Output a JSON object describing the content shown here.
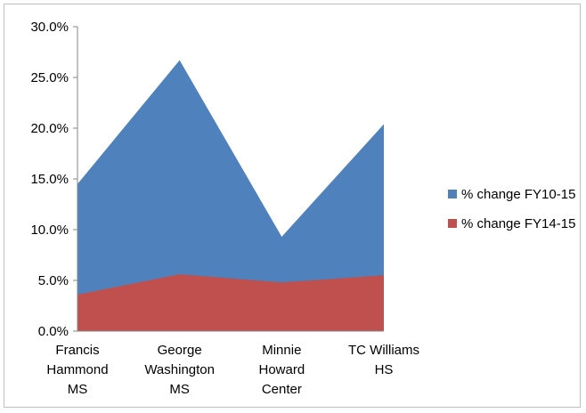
{
  "chart_data": {
    "type": "area",
    "title": "",
    "xlabel": "",
    "ylabel": "",
    "categories": [
      [
        "Francis",
        "Hammond",
        "MS"
      ],
      [
        "George",
        "Washington",
        "MS"
      ],
      [
        "Minnie",
        "Howard",
        "Center"
      ],
      [
        "TC Williams",
        "HS"
      ]
    ],
    "series": [
      {
        "name": "% change FY10-15",
        "values": [
          14.5,
          26.7,
          9.3,
          20.4
        ],
        "color": "#4F81BD"
      },
      {
        "name": "% change FY14-15",
        "values": [
          3.6,
          5.6,
          4.8,
          5.5
        ],
        "color": "#C0504D"
      }
    ],
    "ylim": [
      0,
      30
    ],
    "yticks": [
      0,
      5,
      10,
      15,
      20,
      25,
      30
    ],
    "ytick_labels": [
      "0.0%",
      "5.0%",
      "10.0%",
      "15.0%",
      "20.0%",
      "25.0%",
      "30.0%"
    ],
    "grid": false,
    "legend_position": "right"
  }
}
